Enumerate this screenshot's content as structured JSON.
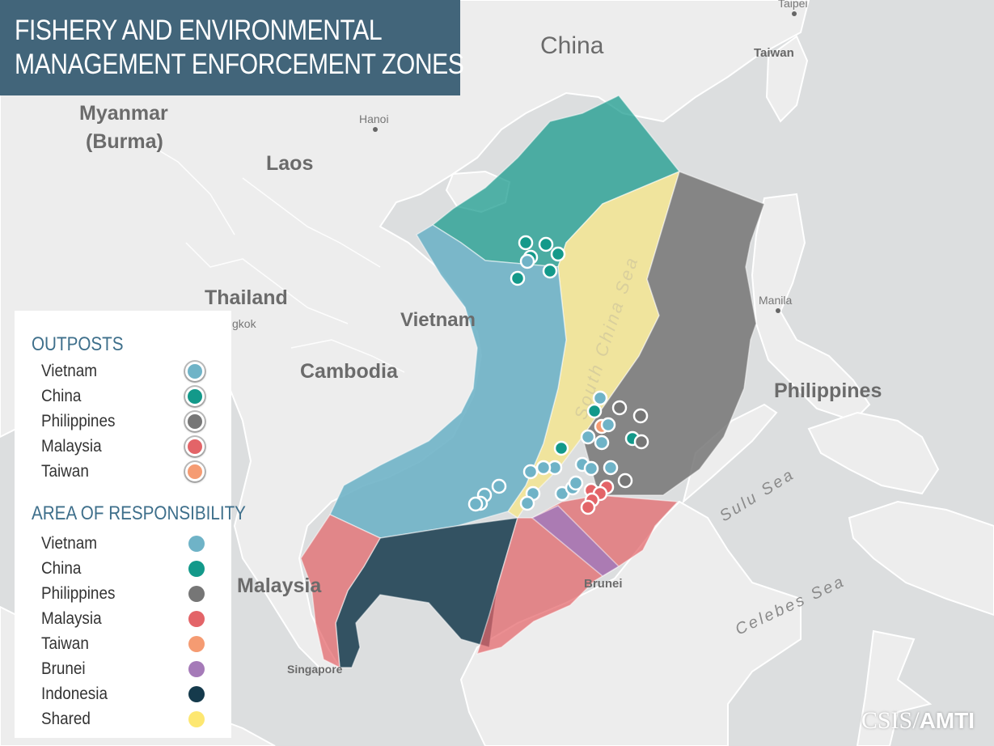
{
  "title": {
    "line1": "FISHERY AND ENVIRONMENTAL",
    "line2": "MANAGEMENT ENFORCEMENT ZONES"
  },
  "map_labels": {
    "china": "China",
    "taiwan": "Taiwan",
    "taipei": "Taipei",
    "myanmar1": "Myanmar",
    "myanmar2": "(Burma)",
    "laos": "Laos",
    "hanoi": "Hanoi",
    "thailand": "Thailand",
    "bangkok": "gkok",
    "vietnam": "Vietnam",
    "cambodia": "Cambodia",
    "manila": "Manila",
    "philippines": "Philippines",
    "sulu_sea": "Sulu Sea",
    "celebes_sea": "Celebes Sea",
    "south_china_sea": "South China Sea",
    "malaysia": "Malaysia",
    "singapore": "Singapore",
    "brunei": "Brunei"
  },
  "legend": {
    "outposts_title": "OUTPOSTS",
    "outposts": [
      {
        "label": "Vietnam",
        "color": "#6fb3c7"
      },
      {
        "label": "China",
        "color": "#13998a"
      },
      {
        "label": "Philippines",
        "color": "#767676"
      },
      {
        "label": "Malaysia",
        "color": "#e36468"
      },
      {
        "label": "Taiwan",
        "color": "#f59b72"
      }
    ],
    "aor_title": "AREA OF RESPONSIBILITY",
    "aor": [
      {
        "label": "Vietnam",
        "color": "#6fb3c7"
      },
      {
        "label": "China",
        "color": "#13998a"
      },
      {
        "label": "Philippines",
        "color": "#767676"
      },
      {
        "label": "Malaysia",
        "color": "#e36468"
      },
      {
        "label": "Taiwan",
        "color": "#f59b72"
      },
      {
        "label": "Brunei",
        "color": "#a57ab8"
      },
      {
        "label": "Indonesia",
        "color": "#153a4c"
      },
      {
        "label": "Shared",
        "color": "#fde771"
      }
    ]
  },
  "credit": {
    "org": "CSIS",
    "sep": "/",
    "program": "AMTI"
  }
}
